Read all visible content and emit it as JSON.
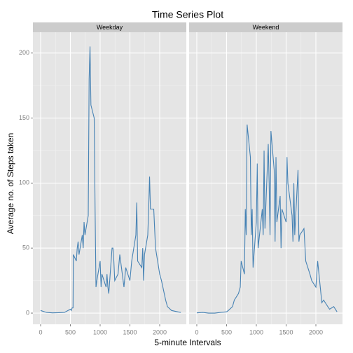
{
  "chart_data": {
    "type": "line",
    "title": "Time Series Plot",
    "xlabel": "5-minute Intervals",
    "ylabel": "Average no. of Steps taken",
    "xlim": [
      -129,
      2447
    ],
    "ylim": [
      -8.6,
      216
    ],
    "xticks": [
      0,
      500,
      1000,
      1500,
      2000
    ],
    "yticks": [
      0,
      50,
      100,
      150,
      200
    ],
    "grid": true,
    "series": [
      {
        "name": "Weekday",
        "color": "#4682b4",
        "x": [
          0,
          100,
          200,
          300,
          400,
          500,
          515,
          530,
          545,
          550,
          600,
          615,
          630,
          645,
          700,
          715,
          730,
          745,
          800,
          815,
          830,
          845,
          900,
          915,
          930,
          945,
          1000,
          1015,
          1030,
          1100,
          1115,
          1130,
          1145,
          1200,
          1215,
          1230,
          1245,
          1300,
          1330,
          1400,
          1430,
          1500,
          1530,
          1600,
          1615,
          1630,
          1700,
          1715,
          1730,
          1745,
          1800,
          1815,
          1830,
          1845,
          1900,
          1930,
          2000,
          2030,
          2100,
          2130,
          2200,
          2300,
          2355
        ],
        "values": [
          2,
          0.5,
          0.2,
          0.3,
          0.5,
          3,
          2,
          4,
          4,
          45,
          40,
          50,
          55,
          45,
          60,
          50,
          70,
          60,
          75,
          180,
          205,
          160,
          150,
          80,
          20,
          25,
          40,
          20,
          30,
          20,
          30,
          20,
          15,
          50,
          50,
          40,
          25,
          30,
          45,
          20,
          35,
          25,
          40,
          60,
          85,
          40,
          35,
          50,
          25,
          45,
          60,
          80,
          105,
          80,
          80,
          50,
          30,
          25,
          10,
          5,
          2,
          1,
          0.5
        ]
      },
      {
        "name": "Weekend",
        "color": "#4682b4",
        "x": [
          0,
          100,
          200,
          300,
          400,
          500,
          530,
          600,
          630,
          700,
          730,
          745,
          800,
          815,
          830,
          845,
          900,
          915,
          930,
          945,
          1000,
          1015,
          1030,
          1100,
          1115,
          1130,
          1145,
          1200,
          1215,
          1230,
          1245,
          1300,
          1315,
          1330,
          1345,
          1400,
          1415,
          1430,
          1500,
          1515,
          1530,
          1600,
          1615,
          1630,
          1645,
          1700,
          1715,
          1730,
          1800,
          1830,
          1900,
          1930,
          2000,
          2030,
          2100,
          2130,
          2200,
          2230,
          2300,
          2355
        ],
        "values": [
          0.2,
          0.5,
          0,
          0,
          0.5,
          1,
          2,
          5,
          10,
          15,
          20,
          40,
          30,
          80,
          60,
          145,
          120,
          60,
          80,
          35,
          70,
          115,
          50,
          80,
          60,
          125,
          65,
          130,
          100,
          60,
          140,
          110,
          55,
          120,
          70,
          90,
          50,
          80,
          70,
          120,
          100,
          75,
          55,
          100,
          60,
          110,
          55,
          60,
          65,
          40,
          30,
          25,
          20,
          40,
          8,
          10,
          5,
          3,
          5,
          1
        ]
      }
    ]
  }
}
